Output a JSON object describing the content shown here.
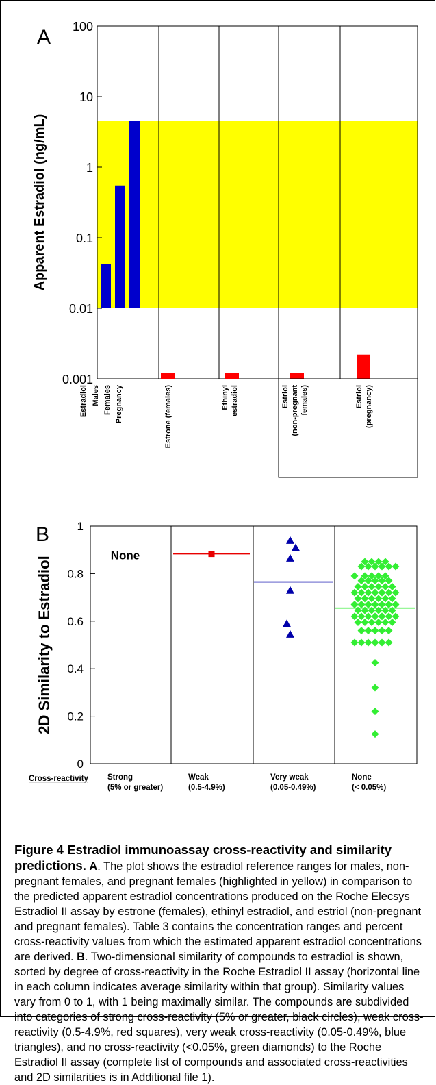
{
  "chart_data": [
    {
      "type": "bar",
      "panel_letter": "A",
      "ylabel": "Apparent Estradiol (ng/mL)",
      "yscale": "log",
      "ylim": [
        0.001,
        100
      ],
      "yticks": [
        "100",
        "10",
        "1",
        "0.1",
        "0.01",
        "0.001"
      ],
      "reference_band": {
        "from": 0.01,
        "to": 4.5,
        "color": "#ffff00"
      },
      "groups": [
        {
          "labels": [
            "Estradiol",
            "Males",
            "Females",
            "Pregnancy"
          ],
          "bars": [
            {
              "label": "Males",
              "value": 0.042,
              "base": 0.01,
              "color": "#0000cc"
            },
            {
              "label": "Females",
              "value": 0.55,
              "base": 0.01,
              "color": "#0000cc"
            },
            {
              "label": "Pregnancy",
              "value": 4.5,
              "base": 0.01,
              "color": "#0000cc"
            }
          ]
        },
        {
          "labels": [
            "Estrone (females)"
          ],
          "bars": [
            {
              "label": "Estrone (females)",
              "value": 0.0012,
              "base": 0.001,
              "color": "#ff0000"
            }
          ]
        },
        {
          "labels": [
            "Ethinyl",
            "estradiol"
          ],
          "bars": [
            {
              "label": "Ethinyl estradiol",
              "value": 0.0012,
              "base": 0.001,
              "color": "#ff0000"
            }
          ]
        },
        {
          "labels": [
            "Estriol",
            "(non-pregnant",
            "females)"
          ],
          "bars": [
            {
              "label": "Estriol (non-pregnant females)",
              "value": 0.0012,
              "base": 0.001,
              "color": "#ff0000"
            }
          ]
        },
        {
          "labels": [
            "Estriol",
            "(pregnancy)"
          ],
          "bars": [
            {
              "label": "Estriol (pregnancy)",
              "value": 0.0022,
              "base": 0.001,
              "color": "#ff0000"
            }
          ]
        }
      ]
    },
    {
      "type": "scatter",
      "panel_letter": "B",
      "ylabel": "2D Similarity to Estradiol",
      "ylim": [
        0,
        1
      ],
      "yticks": [
        "0",
        "0.2",
        "0.4",
        "0.6",
        "0.8",
        "1"
      ],
      "row_label": "Cross-reactivity",
      "groups": [
        {
          "label": "Strong",
          "sublabel": "(5% or greater)",
          "annotation": "None",
          "points": [],
          "mean": null
        },
        {
          "label": "Weak",
          "sublabel": "(0.5-4.9%)",
          "marker": "square",
          "color": "#e80000",
          "points": [
            {
              "x": 0,
              "y": 0.883
            }
          ],
          "mean": 0.883
        },
        {
          "label": "Very weak",
          "sublabel": "(0.05-0.49%)",
          "marker": "triangle",
          "color": "#0000aa",
          "points": [
            {
              "x": -0.5,
              "y": 0.94
            },
            {
              "x": 0.3,
              "y": 0.91
            },
            {
              "x": -0.5,
              "y": 0.865
            },
            {
              "x": -0.5,
              "y": 0.73
            },
            {
              "x": -1.0,
              "y": 0.59
            },
            {
              "x": -0.5,
              "y": 0.545
            }
          ],
          "mean": 0.765
        },
        {
          "label": "None",
          "sublabel": "(< 0.05%)",
          "marker": "diamond",
          "color": "#33ee33",
          "points": [
            {
              "x": -1.5,
              "y": 0.85
            },
            {
              "x": -0.5,
              "y": 0.85
            },
            {
              "x": 0.5,
              "y": 0.85
            },
            {
              "x": 1.5,
              "y": 0.85
            },
            {
              "x": -2,
              "y": 0.83
            },
            {
              "x": -1,
              "y": 0.83
            },
            {
              "x": 0,
              "y": 0.83
            },
            {
              "x": 1,
              "y": 0.83
            },
            {
              "x": 2,
              "y": 0.83
            },
            {
              "x": 3,
              "y": 0.83
            },
            {
              "x": -3,
              "y": 0.79
            },
            {
              "x": -1.5,
              "y": 0.79
            },
            {
              "x": -0.5,
              "y": 0.79
            },
            {
              "x": 0.5,
              "y": 0.79
            },
            {
              "x": 1.5,
              "y": 0.79
            },
            {
              "x": -2,
              "y": 0.77
            },
            {
              "x": -1,
              "y": 0.77
            },
            {
              "x": 0,
              "y": 0.77
            },
            {
              "x": 1,
              "y": 0.77
            },
            {
              "x": 2,
              "y": 0.77
            },
            {
              "x": -2.5,
              "y": 0.745
            },
            {
              "x": -1.5,
              "y": 0.745
            },
            {
              "x": -0.5,
              "y": 0.745
            },
            {
              "x": 0.5,
              "y": 0.745
            },
            {
              "x": 1.5,
              "y": 0.745
            },
            {
              "x": 2.5,
              "y": 0.745
            },
            {
              "x": -3,
              "y": 0.72
            },
            {
              "x": -2,
              "y": 0.72
            },
            {
              "x": -1,
              "y": 0.72
            },
            {
              "x": 0,
              "y": 0.72
            },
            {
              "x": 1,
              "y": 0.72
            },
            {
              "x": 2,
              "y": 0.72
            },
            {
              "x": 3,
              "y": 0.72
            },
            {
              "x": -2.5,
              "y": 0.695
            },
            {
              "x": -1.5,
              "y": 0.695
            },
            {
              "x": -0.5,
              "y": 0.695
            },
            {
              "x": 0.5,
              "y": 0.695
            },
            {
              "x": 1.5,
              "y": 0.695
            },
            {
              "x": 2.5,
              "y": 0.695
            },
            {
              "x": -3,
              "y": 0.67
            },
            {
              "x": -2,
              "y": 0.67
            },
            {
              "x": -1,
              "y": 0.67
            },
            {
              "x": 0,
              "y": 0.67
            },
            {
              "x": 1,
              "y": 0.67
            },
            {
              "x": 2,
              "y": 0.67
            },
            {
              "x": 3,
              "y": 0.67
            },
            {
              "x": -2.5,
              "y": 0.645
            },
            {
              "x": -1.5,
              "y": 0.645
            },
            {
              "x": -0.5,
              "y": 0.645
            },
            {
              "x": 0.5,
              "y": 0.645
            },
            {
              "x": 1.5,
              "y": 0.645
            },
            {
              "x": 2.5,
              "y": 0.645
            },
            {
              "x": -3,
              "y": 0.62
            },
            {
              "x": -2,
              "y": 0.62
            },
            {
              "x": -1,
              "y": 0.62
            },
            {
              "x": 0,
              "y": 0.62
            },
            {
              "x": 1,
              "y": 0.62
            },
            {
              "x": 2,
              "y": 0.62
            },
            {
              "x": 3,
              "y": 0.62
            },
            {
              "x": -2.5,
              "y": 0.595
            },
            {
              "x": -1.5,
              "y": 0.595
            },
            {
              "x": -0.5,
              "y": 0.595
            },
            {
              "x": 0.5,
              "y": 0.595
            },
            {
              "x": 1.5,
              "y": 0.595
            },
            {
              "x": 2.5,
              "y": 0.595
            },
            {
              "x": -2,
              "y": 0.56
            },
            {
              "x": -1,
              "y": 0.56
            },
            {
              "x": 0,
              "y": 0.56
            },
            {
              "x": 1,
              "y": 0.56
            },
            {
              "x": 2,
              "y": 0.56
            },
            {
              "x": -3,
              "y": 0.51
            },
            {
              "x": -2,
              "y": 0.51
            },
            {
              "x": -1,
              "y": 0.51
            },
            {
              "x": 0,
              "y": 0.51
            },
            {
              "x": 1,
              "y": 0.51
            },
            {
              "x": 2,
              "y": 0.51
            },
            {
              "x": 0,
              "y": 0.425
            },
            {
              "x": 0,
              "y": 0.32
            },
            {
              "x": 0,
              "y": 0.22
            },
            {
              "x": 0,
              "y": 0.125
            }
          ],
          "mean": 0.655
        }
      ]
    }
  ],
  "caption": {
    "title": "Figure 4 Estradiol immunoassay cross-reactivity and similarity predictions.",
    "a_letter": "A",
    "a_text": ". The plot shows the estradiol reference ranges for males, non-pregnant females, and pregnant females (highlighted in yellow) in comparison to the predicted apparent estradiol concentrations produced on the Roche Elecsys Estradiol II assay by estrone (females), ethinyl estradiol, and estriol (non-pregnant and pregnant females). Table 3 contains the concentration ranges and percent cross-reactivity values from which the estimated apparent estradiol concentrations are derived.",
    "b_letter": "B",
    "b_text": ". Two-dimensional similarity of compounds to estradiol is shown, sorted by degree of cross-reactivity in the Roche Estradiol II assay (horizontal line in each column indicates average similarity within that group). Similarity values vary from 0 to 1, with 1 being maximally similar. The compounds are subdivided into categories of strong cross-reactivity (5% or greater, black circles), weak cross-reactivity (0.5-4.9%, red squares), very weak cross-reactivity (0.05-0.49%, blue triangles), and no cross-reactivity (<0.05%, green diamonds) to the Roche Estradiol II assay (complete list of compounds and associated cross-reactivities and 2D similarities is in Additional file 1)."
  }
}
